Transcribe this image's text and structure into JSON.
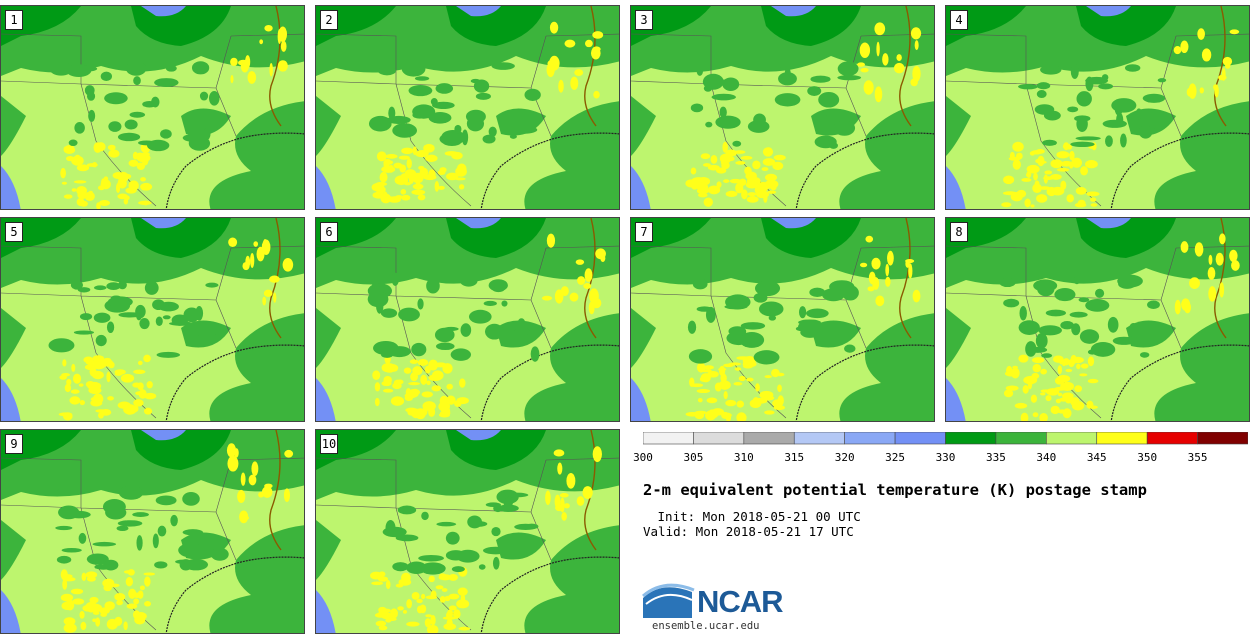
{
  "figure": {
    "title": "2-m equivalent potential temperature (K) postage stamp",
    "init_line": " Init: Mon 2018-05-21 00 UTC",
    "valid_line": "Valid: Mon 2018-05-21 17 UTC",
    "website": "ensemble.ucar.edu",
    "logo_text": "NCAR",
    "logo_icon": "ncar-swoosh-icon"
  },
  "members": [
    "1",
    "2",
    "3",
    "4",
    "5",
    "6",
    "7",
    "8",
    "9",
    "10"
  ],
  "colorbar": {
    "ticks": [
      "300",
      "305",
      "310",
      "315",
      "320",
      "325",
      "330",
      "335",
      "340",
      "345",
      "350",
      "355"
    ],
    "colors": [
      "#f2f2f2",
      "#dcdcdc",
      "#aaaaaa",
      "#b4c8f5",
      "#8aa8f5",
      "#7390f5",
      "#009a15",
      "#3cb43c",
      "#bdf56e",
      "#ffff1a",
      "#e60000",
      "#800000"
    ]
  },
  "map_colors": {
    "land_main": "#bdf56e",
    "moist": "#3cb43c",
    "very_moist": "#009a15",
    "warm": "#ffff1a",
    "cool": "#7390f5",
    "borders": "#555555"
  }
}
